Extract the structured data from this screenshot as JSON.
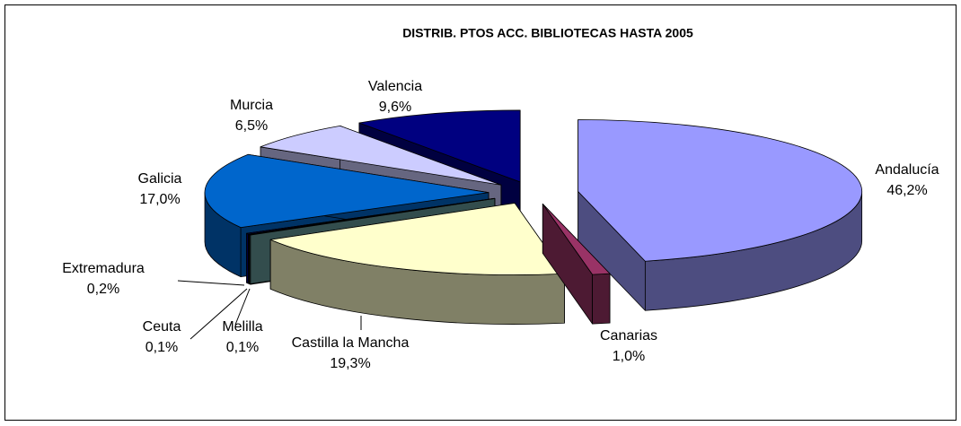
{
  "chart_data": {
    "type": "pie",
    "title": "DISTRIB. PTOS ACC. BIBLIOTECAS HASTA 2005",
    "categories": [
      "Andalucía",
      "Canarias",
      "Castilla la Mancha",
      "Melilla",
      "Ceuta",
      "Extremadura",
      "Galicia",
      "Murcia",
      "Valencia"
    ],
    "values": [
      46.2,
      1.0,
      19.3,
      0.1,
      0.1,
      0.2,
      17.0,
      6.5,
      9.6
    ],
    "value_labels": [
      "46,2%",
      "1,0%",
      "19,3%",
      "0,1%",
      "0,1%",
      "0,2%",
      "17,0%",
      "6,5%",
      "9,6%"
    ],
    "colors": [
      "#9999ff",
      "#993366",
      "#ffffcc",
      "#669999",
      "#1a1a1a",
      "#000080",
      "#0066cc",
      "#ccccff",
      "#000080"
    ]
  }
}
